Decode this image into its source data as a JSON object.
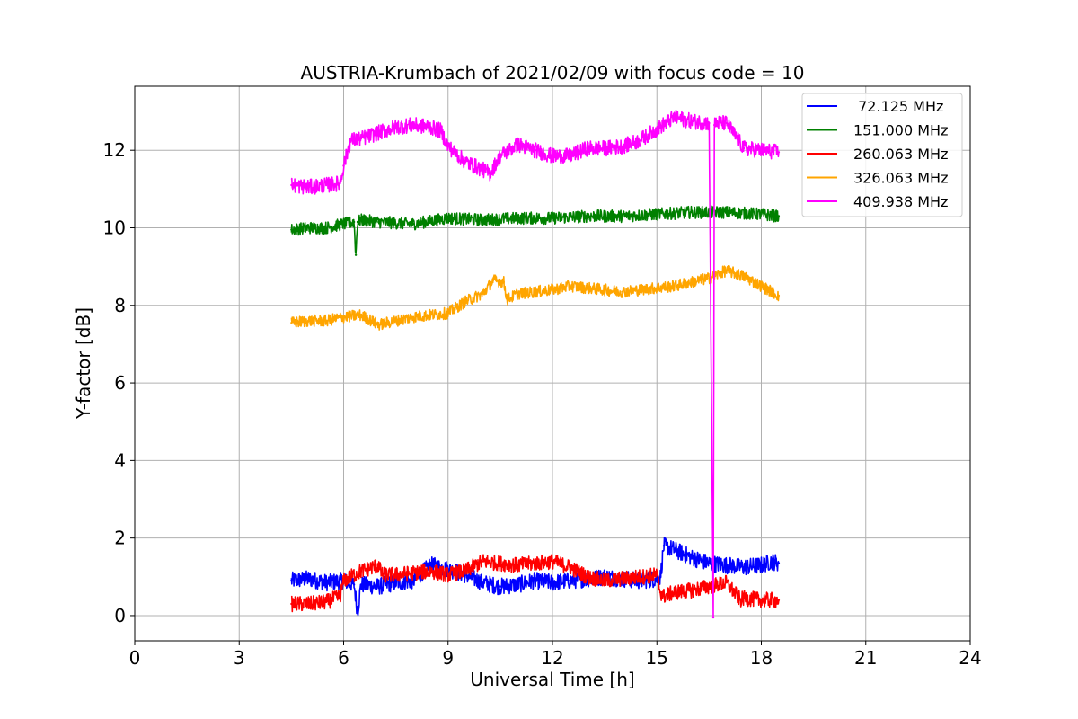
{
  "chart_data": {
    "type": "line",
    "title": "AUSTRIA-Krumbach of 2021/02/09 with focus code = 10",
    "xlabel": "Universal Time [h]",
    "ylabel": "Y-factor [dB]",
    "xlim": [
      0,
      24
    ],
    "ylim": [
      -0.65,
      13.65
    ],
    "xticks": [
      0,
      3,
      6,
      9,
      12,
      15,
      18,
      21,
      24
    ],
    "yticks": [
      0,
      2,
      4,
      6,
      8,
      10,
      12
    ],
    "grid": true,
    "legend_position": "top-right",
    "series": [
      {
        "name": " 72.125 MHz",
        "color": "#0000ff",
        "x": [
          4.5,
          5.0,
          5.5,
          6.0,
          6.3,
          6.4,
          6.5,
          7.0,
          7.5,
          8.0,
          8.5,
          9.0,
          9.5,
          10.0,
          10.5,
          11.0,
          11.5,
          12.0,
          12.5,
          13.0,
          13.5,
          14.0,
          14.5,
          15.0,
          15.1,
          15.2,
          15.5,
          16.0,
          16.5,
          17.0,
          17.5,
          18.0,
          18.3,
          18.5
        ],
        "y": [
          0.9,
          0.95,
          0.85,
          0.9,
          0.8,
          0.1,
          0.8,
          0.75,
          0.85,
          0.9,
          1.3,
          1.2,
          1.05,
          0.85,
          0.75,
          0.8,
          0.9,
          0.85,
          0.9,
          0.95,
          1.0,
          0.95,
          0.9,
          0.95,
          1.0,
          1.8,
          1.7,
          1.5,
          1.35,
          1.3,
          1.25,
          1.3,
          1.4,
          1.35
        ],
        "noise": 0.22
      },
      {
        "name": "151.000 MHz",
        "color": "#008000",
        "x": [
          4.5,
          5.0,
          5.5,
          6.0,
          6.3,
          6.35,
          6.4,
          6.5,
          7.0,
          8.0,
          9.0,
          10.0,
          11.0,
          12.0,
          13.0,
          14.0,
          15.0,
          16.0,
          17.0,
          18.0,
          18.5
        ],
        "y": [
          9.95,
          10.0,
          10.0,
          10.1,
          10.15,
          9.3,
          10.15,
          10.2,
          10.15,
          10.1,
          10.25,
          10.2,
          10.25,
          10.25,
          10.3,
          10.3,
          10.35,
          10.4,
          10.4,
          10.35,
          10.3
        ],
        "noise": 0.16
      },
      {
        "name": "260.063 MHz",
        "color": "#ff0000",
        "x": [
          4.5,
          5.0,
          5.5,
          5.9,
          6.0,
          6.5,
          7.0,
          7.1,
          7.5,
          8.0,
          8.5,
          9.0,
          9.5,
          10.0,
          10.5,
          11.0,
          11.5,
          12.0,
          12.5,
          13.0,
          13.5,
          14.0,
          14.5,
          15.0,
          15.1,
          15.2,
          15.5,
          16.0,
          16.5,
          17.0,
          17.4,
          17.5,
          18.0,
          18.5
        ],
        "y": [
          0.3,
          0.3,
          0.35,
          0.5,
          0.9,
          1.15,
          1.3,
          1.05,
          1.05,
          1.1,
          1.15,
          1.05,
          1.15,
          1.4,
          1.35,
          1.3,
          1.35,
          1.4,
          1.25,
          1.0,
          0.9,
          0.95,
          1.0,
          1.05,
          0.6,
          0.5,
          0.6,
          0.65,
          0.75,
          0.85,
          0.4,
          0.45,
          0.4,
          0.4
        ],
        "noise": 0.2
      },
      {
        "name": "326.063 MHz",
        "color": "#ffa500",
        "x": [
          4.5,
          5.0,
          5.5,
          6.0,
          6.5,
          7.0,
          7.5,
          8.0,
          8.5,
          9.0,
          9.5,
          10.0,
          10.3,
          10.6,
          10.7,
          11.0,
          11.5,
          12.0,
          12.5,
          13.0,
          13.5,
          14.0,
          14.5,
          15.0,
          15.5,
          16.0,
          16.5,
          17.0,
          17.5,
          18.0,
          18.5
        ],
        "y": [
          7.55,
          7.6,
          7.6,
          7.7,
          7.75,
          7.5,
          7.6,
          7.7,
          7.75,
          7.8,
          8.1,
          8.3,
          8.65,
          8.6,
          8.15,
          8.3,
          8.35,
          8.4,
          8.5,
          8.45,
          8.4,
          8.35,
          8.4,
          8.45,
          8.5,
          8.6,
          8.7,
          8.9,
          8.75,
          8.5,
          8.25
        ],
        "noise": 0.15
      },
      {
        "name": "409.938 MHz",
        "color": "#ff00ff",
        "x": [
          4.5,
          5.0,
          5.5,
          5.9,
          6.0,
          6.2,
          6.5,
          7.0,
          7.5,
          8.0,
          8.5,
          8.8,
          9.0,
          9.5,
          10.0,
          10.2,
          10.5,
          11.0,
          11.5,
          12.0,
          12.5,
          13.0,
          13.5,
          14.0,
          14.5,
          15.0,
          15.5,
          16.0,
          16.5,
          16.62,
          16.65,
          16.7,
          17.0,
          17.5,
          18.0,
          18.5
        ],
        "y": [
          11.1,
          11.05,
          11.1,
          11.15,
          11.6,
          12.25,
          12.3,
          12.45,
          12.6,
          12.65,
          12.6,
          12.5,
          12.1,
          11.7,
          11.5,
          11.4,
          11.85,
          12.15,
          12.0,
          11.85,
          11.85,
          12.05,
          12.05,
          12.1,
          12.25,
          12.55,
          12.85,
          12.75,
          12.7,
          -0.05,
          12.65,
          12.7,
          12.7,
          12.05,
          12.0,
          11.95
        ],
        "noise": 0.2
      }
    ]
  }
}
